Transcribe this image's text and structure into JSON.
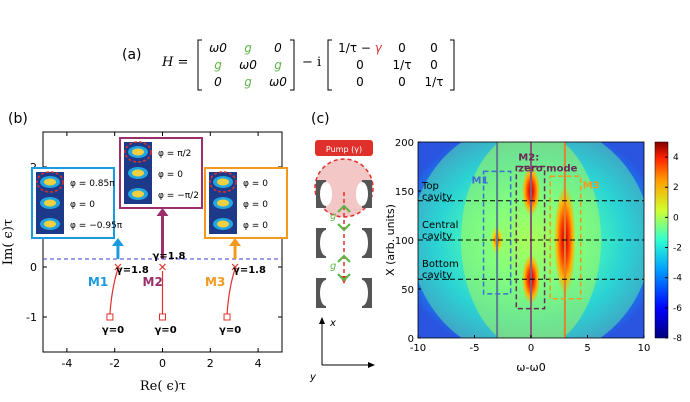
{
  "panel_labels": {
    "a": "(a)",
    "b": "(b)",
    "c": "(c)"
  },
  "equation": {
    "lhs": "H =",
    "m1": [
      [
        "ω0",
        "g",
        "0"
      ],
      [
        "g",
        "ω0",
        "g"
      ],
      [
        "0",
        "g",
        "ω0"
      ]
    ],
    "minus_i": "− i",
    "m2": [
      [
        "1/τ − γ",
        "0",
        "0"
      ],
      [
        "0",
        "1/τ",
        "0"
      ],
      [
        "0",
        "0",
        "1/τ"
      ]
    ],
    "green": "#5fb548",
    "red": "#e0302b"
  },
  "panel_b": {
    "xlabel": "Re( ϵ)τ",
    "ylabel": "Im( ϵ)τ",
    "x_ticks": [
      "-4",
      "-2",
      "0",
      "2",
      "4"
    ],
    "y_ticks": [
      "-1",
      "0",
      "1",
      "2"
    ],
    "modes": [
      {
        "name": "M1",
        "color": "#1a9ae0",
        "gamma_top": "γ=1.8",
        "gamma_bottom": "γ=0",
        "phases": [
          "φ = 0.85π",
          "φ = 0",
          "φ = −0.95π"
        ]
      },
      {
        "name": "M2",
        "color": "#9b2f6b",
        "gamma_top": "γ=1.8",
        "gamma_bottom": "γ=0",
        "phases": [
          "φ = π/2",
          "φ = 0",
          "φ = −π/2"
        ]
      },
      {
        "name": "M3",
        "color": "#f39a1d",
        "gamma_top": "γ=1.8",
        "gamma_bottom": "γ=0",
        "phases": [
          "φ = 0",
          "φ = 0",
          "φ = 0"
        ]
      }
    ]
  },
  "panel_c_schematic": {
    "pump_label": "Pump (γ)",
    "g_label": "g",
    "axis_x": "x",
    "axis_y": "y"
  },
  "chart_data": {
    "type": "heatmap",
    "xlabel": "ω-ω0",
    "ylabel": "X (arb. units)",
    "x_ticks": [
      "-10",
      "-5",
      "0",
      "5",
      "10"
    ],
    "y_ticks": [
      "0",
      "50",
      "100",
      "150",
      "200"
    ],
    "xlim": [
      -10,
      10
    ],
    "ylim": [
      0,
      200
    ],
    "colorbar_ticks": [
      "4",
      "2",
      "0",
      "-2",
      "-4",
      "-6",
      "-8"
    ],
    "colorbar_range": [
      -8,
      5
    ],
    "row_labels": [
      {
        "line1": "Top",
        "line2": "cavity",
        "x_value": 140
      },
      {
        "line1": "Central",
        "line2": "cavity",
        "x_value": 100
      },
      {
        "line1": "Bottom",
        "line2": "cavity",
        "x_value": 60
      }
    ],
    "mode_boxes": [
      {
        "label": "M1",
        "color": "#3b6fd6"
      },
      {
        "label": "M2:",
        "label2": "zero mode",
        "color": "#6b2a55"
      },
      {
        "label": "M3",
        "color": "#f39a1d"
      }
    ],
    "vertical_lines": [
      {
        "omega": -3.0,
        "color": "#5a7f92"
      },
      {
        "omega": 0.0,
        "color": "#8a5a76"
      },
      {
        "omega": 3.0,
        "color": "#e2822a"
      }
    ]
  }
}
